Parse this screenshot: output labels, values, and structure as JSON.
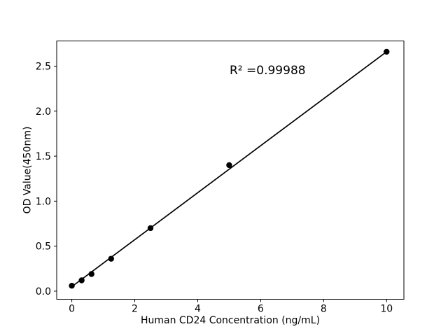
{
  "figure": {
    "background": "#ffffff",
    "foreground": "#000000"
  },
  "chart_data": {
    "type": "scatter",
    "title": "",
    "xlabel": "Human CD24 Concentration (ng/mL)",
    "ylabel": "OD Value(450nm)",
    "x": [
      0,
      0.3125,
      0.625,
      1.25,
      2.5,
      5,
      10
    ],
    "y": [
      0.06,
      0.12,
      0.19,
      0.36,
      0.7,
      1.4,
      2.66
    ],
    "trendline": {
      "x1": 0,
      "y1": 0.05,
      "x2": 10,
      "y2": 2.66
    },
    "annotation": {
      "text": "R² =0.99988",
      "x": 5.0,
      "y": 2.41
    },
    "xticks": [
      "0",
      "2",
      "4",
      "6",
      "8",
      "10"
    ],
    "yticks": [
      "0.0",
      "0.5",
      "1.0",
      "1.5",
      "2.0",
      "2.5"
    ],
    "xlim": [
      -0.48,
      10.55
    ],
    "ylim": [
      -0.09,
      2.78
    ],
    "grid": false,
    "legend": null,
    "marker_color": "#000000",
    "line_color": "#000000",
    "axis_color": "#000000"
  }
}
